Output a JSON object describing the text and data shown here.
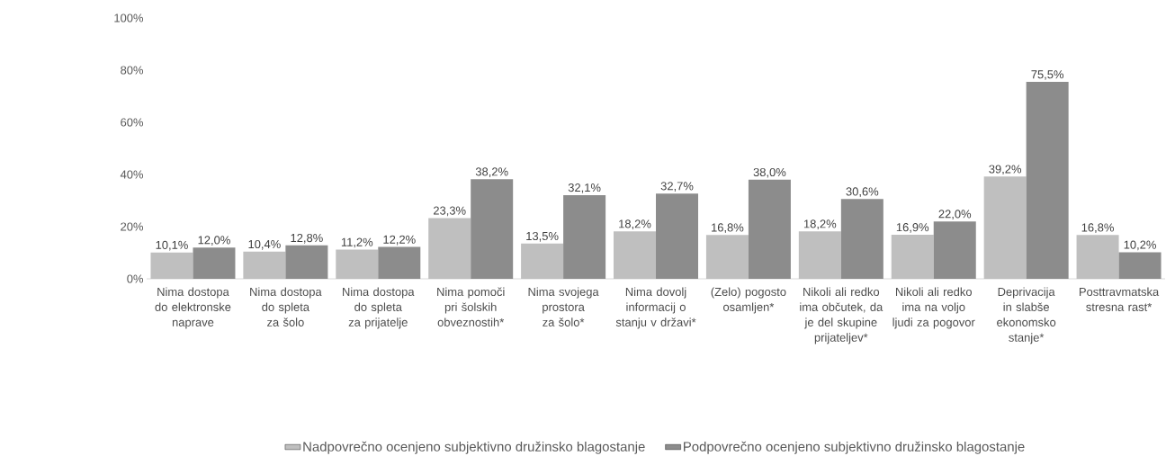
{
  "chart_data": {
    "type": "bar",
    "categories": [
      "Nima dostopa do elektronske naprave",
      "Nima dostopa do spleta za šolo",
      "Nima dostopa do spleta za prijatelje",
      "Nima pomoči pri šolskih obveznostih*",
      "Nima svojega prostora za šolo*",
      "Nima dovolj informacij o stanju v državi*",
      "(Zelo) pogosto osamljen*",
      "Nikoli ali redko ima občutek, da je del skupine prijateljev*",
      "Nikoli ali redko ima na voljo ljudi za pogovor",
      "Deprivacija in slabše ekonomsko stanje*",
      "Posttravmatska stresna rast*"
    ],
    "series": [
      {
        "name": "Nadpovrečno ocenjeno subjektivno družinsko blagostanje",
        "color": "#bfbfbf",
        "values": [
          10.1,
          10.4,
          11.2,
          23.3,
          13.5,
          18.2,
          16.8,
          18.2,
          16.9,
          39.2,
          16.8
        ],
        "value_labels": [
          "10,1%",
          "10,4%",
          "11,2%",
          "23,3%",
          "13,5%",
          "18,2%",
          "16,8%",
          "18,2%",
          "16,9%",
          "39,2%",
          "16,8%"
        ]
      },
      {
        "name": "Podpovrečno ocenjeno subjektivno družinsko blagostanje",
        "color": "#8c8c8c",
        "values": [
          12.0,
          12.8,
          12.2,
          38.2,
          32.1,
          32.7,
          38.0,
          30.6,
          22.0,
          75.5,
          10.2
        ],
        "value_labels": [
          "12,0%",
          "12,8%",
          "12,2%",
          "38,2%",
          "32,1%",
          "32,7%",
          "38,0%",
          "30,6%",
          "22,0%",
          "75,5%",
          "10,2%"
        ]
      }
    ],
    "ylim": [
      0,
      100
    ],
    "yticks": [
      {
        "value": 0,
        "label": "0%"
      },
      {
        "value": 20,
        "label": "20%"
      },
      {
        "value": 40,
        "label": "40%"
      },
      {
        "value": 60,
        "label": "60%"
      },
      {
        "value": 80,
        "label": "80%"
      },
      {
        "value": 100,
        "label": "100%"
      }
    ],
    "grid": false,
    "legend": "bottom"
  }
}
